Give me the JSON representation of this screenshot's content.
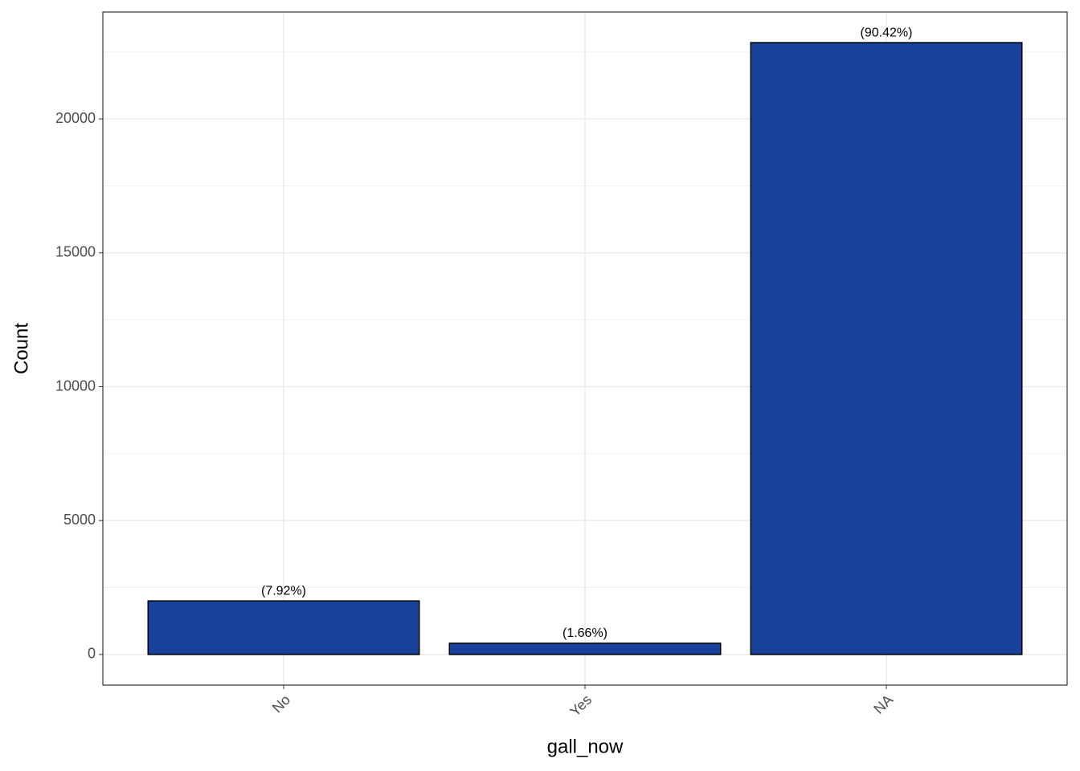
{
  "chart_data": {
    "type": "bar",
    "x_label": "gall_now",
    "y_label": "Count",
    "categories": [
      "No",
      "Yes",
      "NA"
    ],
    "values": [
      2001,
      419,
      22850
    ],
    "bar_labels": [
      "(7.92%)",
      "(1.66%)",
      "(90.42%)"
    ],
    "color": "#17419a",
    "ylim": [
      -1142.5,
      23992.5
    ],
    "yticks": [
      0,
      5000,
      10000,
      15000,
      20000
    ],
    "minor_yticks": [
      2500,
      7500,
      12500,
      17500,
      22500
    ],
    "grid": true
  }
}
